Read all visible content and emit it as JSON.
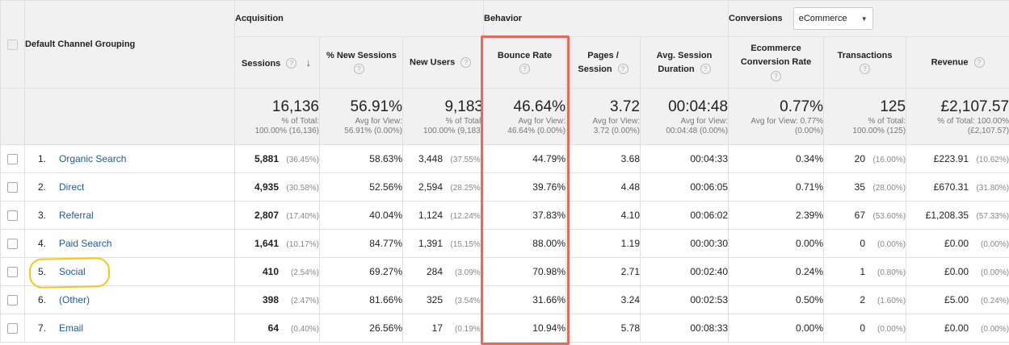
{
  "groups": {
    "acquisition": "Acquisition",
    "behavior": "Behavior",
    "conversions": "Conversions",
    "conversions_select": "eCommerce"
  },
  "dimension_header": "Default Channel Grouping",
  "columns": {
    "sessions": "Sessions",
    "new_sessions": "% New Sessions",
    "new_users": "New Users",
    "bounce_rate": "Bounce Rate",
    "pages_line1": "Pages /",
    "pages_line2": "Session",
    "duration_line1": "Avg. Session",
    "duration_line2": "Duration",
    "ecr_line1": "Ecommerce",
    "ecr_line2": "Conversion Rate",
    "transactions": "Transactions",
    "revenue": "Revenue"
  },
  "totals": {
    "sessions": {
      "value": "16,136",
      "sub1": "% of Total:",
      "sub2": "100.00% (16,136)"
    },
    "new_sessions": {
      "value": "56.91%",
      "sub1": "Avg for View:",
      "sub2": "56.91% (0.00%)"
    },
    "new_users": {
      "value": "9,183",
      "sub1": "% of Total:",
      "sub2": "100.00% (9,183)"
    },
    "bounce_rate": {
      "value": "46.64%",
      "sub1": "Avg for View:",
      "sub2": "46.64% (0.00%)"
    },
    "pages": {
      "value": "3.72",
      "sub1": "Avg for View:",
      "sub2": "3.72 (0.00%)"
    },
    "duration": {
      "value": "00:04:48",
      "sub1": "Avg for View:",
      "sub2": "00:04:48 (0.00%)"
    },
    "ecr": {
      "value": "0.77%",
      "sub1": "Avg for View: 0.77%",
      "sub2": "(0.00%)"
    },
    "transactions": {
      "value": "125",
      "sub1": "% of Total:",
      "sub2": "100.00% (125)"
    },
    "revenue": {
      "value": "£2,107.57",
      "sub1": "% of Total: 100.00%",
      "sub2": "(£2,107.57)"
    }
  },
  "rows": [
    {
      "rank": "1.",
      "channel": "Organic Search",
      "sessions": "5,881",
      "sessions_pct": "(36.45%)",
      "new_sessions": "58.63%",
      "new_users": "3,448",
      "new_users_pct": "(37.55%)",
      "bounce_rate": "44.79%",
      "pages": "3.68",
      "duration": "00:04:33",
      "ecr": "0.34%",
      "transactions": "20",
      "transactions_pct": "(16.00%)",
      "revenue": "£223.91",
      "revenue_pct": "(10.62%)"
    },
    {
      "rank": "2.",
      "channel": "Direct",
      "sessions": "4,935",
      "sessions_pct": "(30.58%)",
      "new_sessions": "52.56%",
      "new_users": "2,594",
      "new_users_pct": "(28.25%)",
      "bounce_rate": "39.76%",
      "pages": "4.48",
      "duration": "00:06:05",
      "ecr": "0.71%",
      "transactions": "35",
      "transactions_pct": "(28.00%)",
      "revenue": "£670.31",
      "revenue_pct": "(31.80%)"
    },
    {
      "rank": "3.",
      "channel": "Referral",
      "sessions": "2,807",
      "sessions_pct": "(17.40%)",
      "new_sessions": "40.04%",
      "new_users": "1,124",
      "new_users_pct": "(12.24%)",
      "bounce_rate": "37.83%",
      "pages": "4.10",
      "duration": "00:06:02",
      "ecr": "2.39%",
      "transactions": "67",
      "transactions_pct": "(53.60%)",
      "revenue": "£1,208.35",
      "revenue_pct": "(57.33%)"
    },
    {
      "rank": "4.",
      "channel": "Paid Search",
      "sessions": "1,641",
      "sessions_pct": "(10.17%)",
      "new_sessions": "84.77%",
      "new_users": "1,391",
      "new_users_pct": "(15.15%)",
      "bounce_rate": "88.00%",
      "pages": "1.19",
      "duration": "00:00:30",
      "ecr": "0.00%",
      "transactions": "0",
      "transactions_pct": "(0.00%)",
      "revenue": "£0.00",
      "revenue_pct": "(0.00%)"
    },
    {
      "rank": "5.",
      "channel": "Social",
      "sessions": "410",
      "sessions_pct": "(2.54%)",
      "new_sessions": "69.27%",
      "new_users": "284",
      "new_users_pct": "(3.09%)",
      "bounce_rate": "70.98%",
      "pages": "2.71",
      "duration": "00:02:40",
      "ecr": "0.24%",
      "transactions": "1",
      "transactions_pct": "(0.80%)",
      "revenue": "£0.00",
      "revenue_pct": "(0.00%)"
    },
    {
      "rank": "6.",
      "channel": "(Other)",
      "sessions": "398",
      "sessions_pct": "(2.47%)",
      "new_sessions": "81.66%",
      "new_users": "325",
      "new_users_pct": "(3.54%)",
      "bounce_rate": "31.66%",
      "pages": "3.24",
      "duration": "00:02:53",
      "ecr": "0.50%",
      "transactions": "2",
      "transactions_pct": "(1.60%)",
      "revenue": "£5.00",
      "revenue_pct": "(0.24%)"
    },
    {
      "rank": "7.",
      "channel": "Email",
      "sessions": "64",
      "sessions_pct": "(0.40%)",
      "new_sessions": "26.56%",
      "new_users": "17",
      "new_users_pct": "(0.19%)",
      "bounce_rate": "10.94%",
      "pages": "5.78",
      "duration": "00:08:33",
      "ecr": "0.00%",
      "transactions": "0",
      "transactions_pct": "(0.00%)",
      "revenue": "£0.00",
      "revenue_pct": "(0.00%)"
    }
  ],
  "icons": {
    "help": "?",
    "sort": "↓",
    "dropdown": "▼"
  },
  "colors": {
    "link": "#1e5aa8",
    "highlight_box": "#e8685c",
    "annotation_circle": "#f2c81d"
  }
}
